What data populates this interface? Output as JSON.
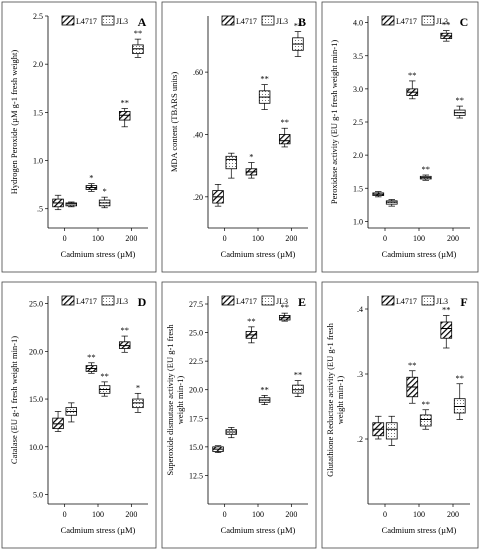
{
  "legend": {
    "items": [
      "L4717",
      "JL3"
    ]
  },
  "chart_data": [
    {
      "type": "box",
      "panel_label": "A",
      "ylabel": "Hydrogen Peroxide (µM g-1 fresh weight)",
      "xlabel": "Cadmium stress (µM)",
      "categories": [
        "0",
        "100",
        "200"
      ],
      "ylim": [
        0.3,
        2.5
      ],
      "yticks": [
        0.5,
        1.0,
        1.5,
        2.0,
        2.5
      ],
      "ytick_labels": [
        ".5",
        "1.0",
        "1.5",
        "2.0",
        "2.5"
      ],
      "series": [
        {
          "name": "L4717",
          "boxes": [
            {
              "min": 0.49,
              "q1": 0.52,
              "median": 0.56,
              "q3": 0.6,
              "max": 0.64,
              "sig": ""
            },
            {
              "min": 0.68,
              "q1": 0.7,
              "median": 0.72,
              "q3": 0.74,
              "max": 0.76,
              "sig": "*"
            },
            {
              "min": 1.35,
              "q1": 1.42,
              "median": 1.47,
              "q3": 1.51,
              "max": 1.54,
              "sig": "**"
            }
          ]
        },
        {
          "name": "JL3",
          "boxes": [
            {
              "min": 0.52,
              "q1": 0.53,
              "median": 0.55,
              "q3": 0.56,
              "max": 0.57,
              "sig": ""
            },
            {
              "min": 0.51,
              "q1": 0.53,
              "median": 0.56,
              "q3": 0.59,
              "max": 0.62,
              "sig": "*"
            },
            {
              "min": 2.07,
              "q1": 2.11,
              "median": 2.16,
              "q3": 2.2,
              "max": 2.26,
              "sig": "**"
            }
          ]
        }
      ]
    },
    {
      "type": "box",
      "panel_label": "B",
      "ylabel": "MDA content (TBARS units)",
      "xlabel": "Cadmium stress (µM)",
      "categories": [
        "0",
        "100",
        "200"
      ],
      "ylim": [
        0.1,
        0.78
      ],
      "yticks": [
        0.2,
        0.4,
        0.6
      ],
      "ytick_labels": [
        ".20",
        ".40",
        ".60"
      ],
      "series": [
        {
          "name": "L4717",
          "boxes": [
            {
              "min": 0.17,
              "q1": 0.18,
              "median": 0.2,
              "q3": 0.22,
              "max": 0.24,
              "sig": ""
            },
            {
              "min": 0.26,
              "q1": 0.27,
              "median": 0.28,
              "q3": 0.29,
              "max": 0.31,
              "sig": "*"
            },
            {
              "min": 0.36,
              "q1": 0.37,
              "median": 0.38,
              "q3": 0.4,
              "max": 0.42,
              "sig": "**"
            }
          ]
        },
        {
          "name": "JL3",
          "boxes": [
            {
              "min": 0.26,
              "q1": 0.29,
              "median": 0.32,
              "q3": 0.33,
              "max": 0.34,
              "sig": ""
            },
            {
              "min": 0.48,
              "q1": 0.5,
              "median": 0.52,
              "q3": 0.54,
              "max": 0.56,
              "sig": "**"
            },
            {
              "min": 0.65,
              "q1": 0.67,
              "median": 0.69,
              "q3": 0.71,
              "max": 0.73,
              "sig": "**"
            }
          ]
        }
      ]
    },
    {
      "type": "box",
      "panel_label": "C",
      "ylabel": "Peroxidase activity (EU g-1 fresh weight min-1)",
      "xlabel": "Cadmium stress (µM)",
      "categories": [
        "0",
        "100",
        "200"
      ],
      "ylim": [
        0.9,
        4.1
      ],
      "yticks": [
        1.0,
        1.5,
        2.0,
        2.5,
        3.0,
        3.5,
        4.0
      ],
      "ytick_labels": [
        "1.0",
        "1.5",
        "2.0",
        "2.5",
        "3.0",
        "3.5",
        "4.0"
      ],
      "series": [
        {
          "name": "L4717",
          "boxes": [
            {
              "min": 1.37,
              "q1": 1.39,
              "median": 1.41,
              "q3": 1.43,
              "max": 1.45,
              "sig": ""
            },
            {
              "min": 2.85,
              "q1": 2.9,
              "median": 2.95,
              "q3": 3.0,
              "max": 3.12,
              "sig": "**"
            },
            {
              "min": 3.72,
              "q1": 3.76,
              "median": 3.8,
              "q3": 3.84,
              "max": 3.88,
              "sig": "**"
            }
          ]
        },
        {
          "name": "JL3",
          "boxes": [
            {
              "min": 1.23,
              "q1": 1.26,
              "median": 1.29,
              "q3": 1.31,
              "max": 1.33,
              "sig": ""
            },
            {
              "min": 1.62,
              "q1": 1.64,
              "median": 1.66,
              "q3": 1.68,
              "max": 1.7,
              "sig": "**"
            },
            {
              "min": 2.56,
              "q1": 2.6,
              "median": 2.64,
              "q3": 2.68,
              "max": 2.74,
              "sig": "**"
            }
          ]
        }
      ]
    },
    {
      "type": "box",
      "panel_label": "D",
      "ylabel": "Catalase (EU g-1 fresh weight min-1)",
      "xlabel": "Cadmium stress (µM)",
      "categories": [
        "0",
        "100",
        "200"
      ],
      "ylim": [
        4.0,
        25.8
      ],
      "yticks": [
        5.0,
        10.0,
        15.0,
        20.0,
        25.0
      ],
      "ytick_labels": [
        "5.0",
        "10.0",
        "15.0",
        "20.0",
        "25.0"
      ],
      "series": [
        {
          "name": "L4717",
          "boxes": [
            {
              "min": 11.6,
              "q1": 11.9,
              "median": 12.4,
              "q3": 13.0,
              "max": 13.7,
              "sig": ""
            },
            {
              "min": 17.7,
              "q1": 17.9,
              "median": 18.2,
              "q3": 18.5,
              "max": 18.8,
              "sig": "**"
            },
            {
              "min": 19.9,
              "q1": 20.3,
              "median": 20.6,
              "q3": 21.0,
              "max": 21.6,
              "sig": "**"
            }
          ]
        },
        {
          "name": "JL3",
          "boxes": [
            {
              "min": 12.6,
              "q1": 13.3,
              "median": 13.7,
              "q3": 14.1,
              "max": 14.6,
              "sig": ""
            },
            {
              "min": 15.3,
              "q1": 15.6,
              "median": 16.0,
              "q3": 16.4,
              "max": 16.8,
              "sig": "**"
            },
            {
              "min": 13.6,
              "q1": 14.1,
              "median": 14.6,
              "q3": 15.0,
              "max": 15.6,
              "sig": "*"
            }
          ]
        }
      ]
    },
    {
      "type": "box",
      "panel_label": "E",
      "ylabel": "Superoxide dismutase activity (EU g-1 fresh weight min-1)",
      "xlabel": "Cadmium stress (µM)",
      "categories": [
        "0",
        "100",
        "200"
      ],
      "ylim": [
        10.0,
        28.2
      ],
      "yticks": [
        12.5,
        15.0,
        17.5,
        20.0,
        22.5,
        25.0,
        27.5
      ],
      "ytick_labels": [
        "12.5",
        "15.0",
        "17.5",
        "20.0",
        "22.5",
        "25.0",
        "27.5"
      ],
      "series": [
        {
          "name": "L4717",
          "boxes": [
            {
              "min": 14.5,
              "q1": 14.6,
              "median": 14.8,
              "q3": 15.0,
              "max": 15.1,
              "sig": ""
            },
            {
              "min": 24.1,
              "q1": 24.5,
              "median": 24.8,
              "q3": 25.1,
              "max": 25.5,
              "sig": "**"
            },
            {
              "min": 26.0,
              "q1": 26.1,
              "median": 26.3,
              "q3": 26.5,
              "max": 26.7,
              "sig": "**"
            }
          ]
        },
        {
          "name": "JL3",
          "boxes": [
            {
              "min": 15.8,
              "q1": 16.1,
              "median": 16.3,
              "q3": 16.5,
              "max": 16.7,
              "sig": ""
            },
            {
              "min": 18.7,
              "q1": 18.9,
              "median": 19.1,
              "q3": 19.3,
              "max": 19.5,
              "sig": "**"
            },
            {
              "min": 19.4,
              "q1": 19.7,
              "median": 20.0,
              "q3": 20.4,
              "max": 20.8,
              "sig": "**"
            }
          ]
        }
      ]
    },
    {
      "type": "box",
      "panel_label": "F",
      "ylabel": "Glutathione Reductase activity (EU g-1 fresh weight min-1)",
      "xlabel": "Cadmium stress (µM)",
      "categories": [
        "0",
        "100",
        "200"
      ],
      "ylim": [
        0.1,
        0.42
      ],
      "yticks": [
        0.2,
        0.3,
        0.4
      ],
      "ytick_labels": [
        ".2",
        ".3",
        ".4"
      ],
      "series": [
        {
          "name": "L4717",
          "boxes": [
            {
              "min": 0.2,
              "q1": 0.205,
              "median": 0.215,
              "q3": 0.225,
              "max": 0.235,
              "sig": ""
            },
            {
              "min": 0.255,
              "q1": 0.265,
              "median": 0.28,
              "q3": 0.295,
              "max": 0.305,
              "sig": "**"
            },
            {
              "min": 0.34,
              "q1": 0.355,
              "median": 0.37,
              "q3": 0.38,
              "max": 0.39,
              "sig": "**"
            }
          ]
        },
        {
          "name": "JL3",
          "boxes": [
            {
              "min": 0.19,
              "q1": 0.2,
              "median": 0.215,
              "q3": 0.225,
              "max": 0.235,
              "sig": ""
            },
            {
              "min": 0.215,
              "q1": 0.22,
              "median": 0.23,
              "q3": 0.237,
              "max": 0.245,
              "sig": "**"
            },
            {
              "min": 0.23,
              "q1": 0.24,
              "median": 0.25,
              "q3": 0.262,
              "max": 0.285,
              "sig": "**"
            }
          ]
        }
      ]
    }
  ]
}
